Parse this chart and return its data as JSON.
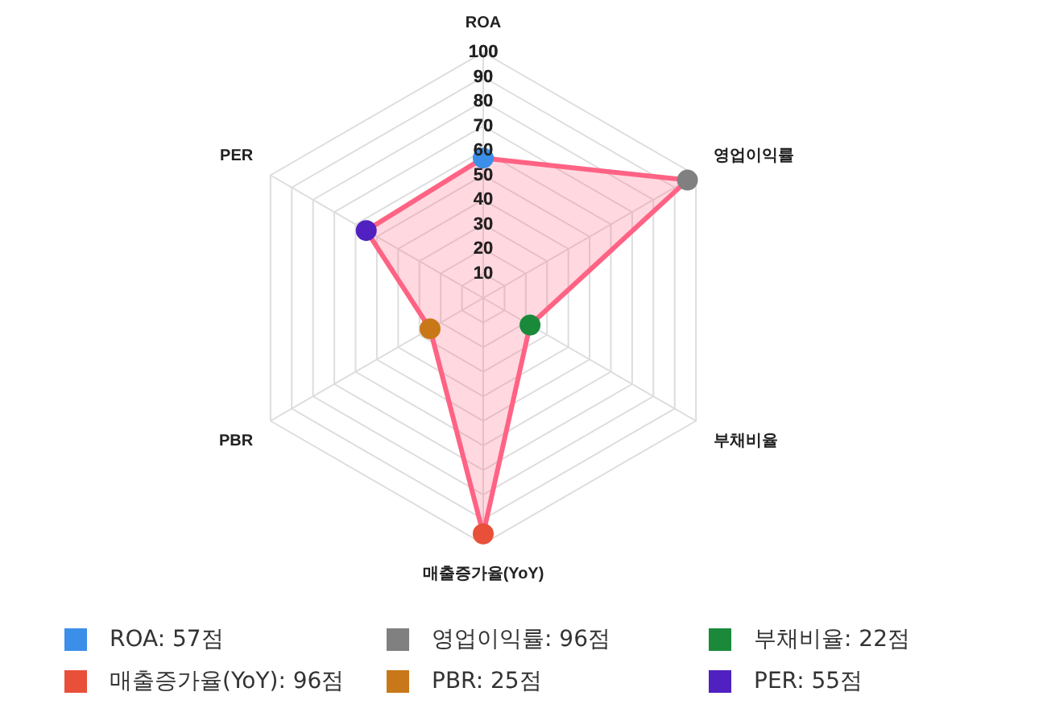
{
  "chart_data": {
    "type": "radar",
    "categories": [
      "ROA",
      "영업이익률",
      "부채비율",
      "매출증가율(YoY)",
      "PBR",
      "PER"
    ],
    "series": [
      {
        "color": "#ff6384",
        "colors": [
          "#3b8fe8",
          "#808080",
          "#1a8a3a",
          "#e8503a",
          "#c87818",
          "#5020c0"
        ],
        "values": [
          57,
          96,
          22,
          96,
          25,
          55
        ]
      }
    ],
    "ylim": [
      0,
      100
    ],
    "yticks": [
      10,
      20,
      30,
      40,
      50,
      60,
      70,
      80,
      90,
      100
    ],
    "grid": true,
    "annotations": [
      "ROA: 57점",
      "영업이익률: 96점",
      "부채비율: 22점",
      "매출증가율(YoY): 96점",
      "PBR: 25점",
      "PER: 55점"
    ]
  }
}
